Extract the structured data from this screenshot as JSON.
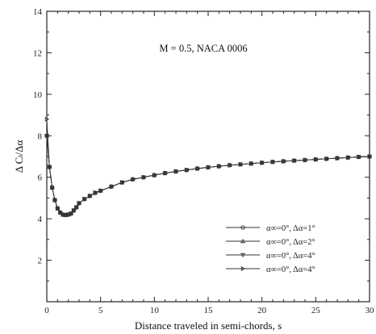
{
  "chart_data": {
    "type": "line",
    "title": "",
    "annotation": "M = 0.5, NACA 0006",
    "xlabel": "Distance traveled in semi-chords, s",
    "ylabel": "Δ Cₗ/Δα",
    "xlim": [
      0,
      30
    ],
    "ylim": [
      0,
      14
    ],
    "xticks": [
      "0",
      "5",
      "10",
      "15",
      "20",
      "25",
      "30"
    ],
    "yticks": [
      "2",
      "4",
      "6",
      "8",
      "10",
      "12",
      "14"
    ],
    "grid": false,
    "legend_position": "bottom-right",
    "series": [
      {
        "name": "α∞=0°, Δα=1°",
        "marker": "circle",
        "x": [
          0,
          0.25,
          0.5,
          0.75,
          1.0,
          1.25,
          1.5,
          1.75,
          2.0,
          2.25,
          2.5,
          2.75,
          3.0,
          3.5,
          4,
          4.5,
          5,
          6,
          7,
          8,
          9,
          10,
          11,
          12,
          13,
          14,
          15,
          16,
          17,
          18,
          19,
          20,
          21,
          22,
          23,
          24,
          25,
          26,
          27,
          28,
          29,
          30
        ],
        "y": [
          8.0,
          6.5,
          5.5,
          4.9,
          4.5,
          4.3,
          4.2,
          4.18,
          4.2,
          4.25,
          4.4,
          4.55,
          4.75,
          4.95,
          5.1,
          5.25,
          5.35,
          5.55,
          5.75,
          5.9,
          6.0,
          6.1,
          6.2,
          6.28,
          6.35,
          6.42,
          6.48,
          6.53,
          6.58,
          6.62,
          6.66,
          6.7,
          6.74,
          6.77,
          6.8,
          6.83,
          6.86,
          6.89,
          6.92,
          6.95,
          6.98,
          7.0
        ]
      },
      {
        "name": "α∞=0°, Δα=2°",
        "marker": "triangle-up",
        "x": [
          0,
          0.25,
          0.5,
          0.75,
          1.0,
          1.25,
          1.5,
          1.75,
          2.0,
          2.25,
          2.5,
          2.75,
          3.0,
          3.5,
          4,
          4.5,
          5,
          6,
          7,
          8,
          9,
          10,
          11,
          12,
          13,
          14,
          15,
          16,
          17,
          18,
          19,
          20,
          21,
          22,
          23,
          24,
          25,
          26,
          27,
          28,
          29,
          30
        ],
        "y": [
          8.0,
          6.5,
          5.5,
          4.9,
          4.5,
          4.3,
          4.2,
          4.18,
          4.2,
          4.25,
          4.4,
          4.55,
          4.75,
          4.95,
          5.1,
          5.25,
          5.35,
          5.55,
          5.75,
          5.9,
          6.0,
          6.1,
          6.2,
          6.28,
          6.35,
          6.42,
          6.48,
          6.53,
          6.58,
          6.62,
          6.66,
          6.7,
          6.74,
          6.77,
          6.8,
          6.83,
          6.86,
          6.89,
          6.92,
          6.95,
          6.98,
          7.0
        ]
      },
      {
        "name": "α∞=0°, Δα=4°",
        "marker": "triangle-down",
        "x": [
          0,
          0.25,
          0.5,
          0.75,
          1.0,
          1.25,
          1.5,
          1.75,
          2.0,
          2.25,
          2.5,
          2.75,
          3.0,
          3.5,
          4,
          4.5,
          5,
          6,
          7,
          8,
          9,
          10,
          11,
          12,
          13,
          14,
          15,
          16,
          17,
          18,
          19,
          20,
          21,
          22,
          23,
          24,
          25,
          26,
          27,
          28,
          29,
          30
        ],
        "y": [
          8.0,
          6.5,
          5.5,
          4.9,
          4.5,
          4.3,
          4.2,
          4.18,
          4.2,
          4.25,
          4.4,
          4.55,
          4.75,
          4.95,
          5.1,
          5.25,
          5.35,
          5.55,
          5.75,
          5.9,
          6.0,
          6.1,
          6.2,
          6.28,
          6.35,
          6.42,
          6.48,
          6.53,
          6.58,
          6.62,
          6.66,
          6.7,
          6.74,
          6.77,
          6.8,
          6.83,
          6.86,
          6.89,
          6.92,
          6.95,
          6.98,
          7.0
        ]
      },
      {
        "name": "α∞=0°, Δα=4°",
        "marker": "triangle-right",
        "x": [
          0,
          0.25,
          0.5,
          0.75,
          1.0,
          1.25,
          1.5,
          1.75,
          2.0,
          2.25,
          2.5,
          2.75,
          3.0,
          3.5,
          4,
          4.5,
          5,
          6,
          7,
          8,
          9,
          10,
          11,
          12,
          13,
          14,
          15,
          16,
          17,
          18,
          19,
          20,
          21,
          22,
          23,
          24,
          25,
          26,
          27,
          28,
          29,
          30
        ],
        "y": [
          8.8,
          6.5,
          5.5,
          4.9,
          4.5,
          4.3,
          4.2,
          4.18,
          4.2,
          4.25,
          4.4,
          4.55,
          4.75,
          4.95,
          5.1,
          5.25,
          5.35,
          5.55,
          5.75,
          5.9,
          6.0,
          6.1,
          6.2,
          6.28,
          6.35,
          6.42,
          6.48,
          6.53,
          6.58,
          6.62,
          6.66,
          6.7,
          6.74,
          6.77,
          6.8,
          6.83,
          6.86,
          6.89,
          6.92,
          6.95,
          6.98,
          7.0
        ]
      }
    ]
  }
}
